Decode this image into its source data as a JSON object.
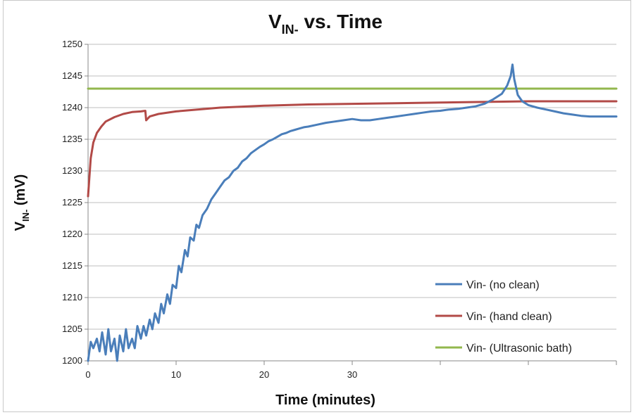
{
  "chart_data": {
    "type": "line",
    "title": {
      "prefix": "V",
      "subscript": "IN-",
      "suffix": " vs. Time"
    },
    "xlabel": "Time (minutes)",
    "ylabel": {
      "prefix": "V",
      "subscript": "IN-",
      "suffix": " (mV)"
    },
    "xlim": [
      0,
      60
    ],
    "ylim": [
      1200,
      1250
    ],
    "x_ticks": [
      0,
      10,
      20,
      30
    ],
    "y_ticks": [
      1200,
      1205,
      1210,
      1215,
      1220,
      1225,
      1230,
      1235,
      1240,
      1245,
      1250
    ],
    "grid": true,
    "legend_position": "right",
    "series": [
      {
        "name": "Vin- (no clean)",
        "color": "#4a7eba",
        "points": [
          [
            0.0,
            1200.0
          ],
          [
            0.3,
            1203.0
          ],
          [
            0.6,
            1202.0
          ],
          [
            1.0,
            1203.5
          ],
          [
            1.3,
            1201.5
          ],
          [
            1.6,
            1204.5
          ],
          [
            2.0,
            1201.0
          ],
          [
            2.3,
            1205.0
          ],
          [
            2.6,
            1201.5
          ],
          [
            3.0,
            1203.5
          ],
          [
            3.3,
            1200.0
          ],
          [
            3.6,
            1204.0
          ],
          [
            4.0,
            1201.5
          ],
          [
            4.3,
            1205.0
          ],
          [
            4.6,
            1202.0
          ],
          [
            5.0,
            1203.5
          ],
          [
            5.3,
            1202.0
          ],
          [
            5.6,
            1205.5
          ],
          [
            6.0,
            1203.5
          ],
          [
            6.3,
            1205.5
          ],
          [
            6.6,
            1204.0
          ],
          [
            7.0,
            1206.5
          ],
          [
            7.3,
            1205.0
          ],
          [
            7.6,
            1207.5
          ],
          [
            8.0,
            1206.0
          ],
          [
            8.3,
            1209.0
          ],
          [
            8.6,
            1207.5
          ],
          [
            9.0,
            1210.5
          ],
          [
            9.3,
            1209.0
          ],
          [
            9.6,
            1212.0
          ],
          [
            10.0,
            1211.5
          ],
          [
            10.3,
            1215.0
          ],
          [
            10.6,
            1214.0
          ],
          [
            11.0,
            1217.5
          ],
          [
            11.3,
            1216.5
          ],
          [
            11.6,
            1219.5
          ],
          [
            12.0,
            1219.0
          ],
          [
            12.3,
            1221.5
          ],
          [
            12.6,
            1221.0
          ],
          [
            13.0,
            1223.0
          ],
          [
            13.5,
            1224.0
          ],
          [
            14.0,
            1225.5
          ],
          [
            14.5,
            1226.5
          ],
          [
            15.0,
            1227.5
          ],
          [
            15.5,
            1228.5
          ],
          [
            16.0,
            1229.0
          ],
          [
            16.5,
            1230.0
          ],
          [
            17.0,
            1230.5
          ],
          [
            17.5,
            1231.5
          ],
          [
            18.0,
            1232.0
          ],
          [
            18.5,
            1232.8
          ],
          [
            19.0,
            1233.3
          ],
          [
            19.5,
            1233.8
          ],
          [
            20.0,
            1234.2
          ],
          [
            20.5,
            1234.7
          ],
          [
            21.0,
            1235.0
          ],
          [
            21.5,
            1235.4
          ],
          [
            22.0,
            1235.8
          ],
          [
            22.5,
            1236.0
          ],
          [
            23.0,
            1236.3
          ],
          [
            23.5,
            1236.5
          ],
          [
            24.0,
            1236.7
          ],
          [
            24.5,
            1236.9
          ],
          [
            25.0,
            1237.0
          ],
          [
            26.0,
            1237.3
          ],
          [
            27.0,
            1237.6
          ],
          [
            28.0,
            1237.8
          ],
          [
            29.0,
            1238.0
          ],
          [
            30.0,
            1238.2
          ],
          [
            31.0,
            1238.0
          ],
          [
            32.0,
            1238.0
          ],
          [
            33.0,
            1238.2
          ],
          [
            34.0,
            1238.4
          ],
          [
            35.0,
            1238.6
          ],
          [
            36.0,
            1238.8
          ],
          [
            37.0,
            1239.0
          ],
          [
            38.0,
            1239.2
          ],
          [
            39.0,
            1239.4
          ],
          [
            40.0,
            1239.5
          ],
          [
            41.0,
            1239.7
          ],
          [
            42.0,
            1239.8
          ],
          [
            43.0,
            1240.0
          ],
          [
            44.0,
            1240.2
          ],
          [
            45.0,
            1240.6
          ],
          [
            46.0,
            1241.3
          ],
          [
            47.0,
            1242.2
          ],
          [
            47.6,
            1243.5
          ],
          [
            48.0,
            1245.0
          ],
          [
            48.2,
            1246.8
          ],
          [
            48.4,
            1244.5
          ],
          [
            48.8,
            1242.0
          ],
          [
            49.3,
            1241.0
          ],
          [
            50.0,
            1240.4
          ],
          [
            51.0,
            1240.0
          ],
          [
            52.0,
            1239.7
          ],
          [
            53.0,
            1239.4
          ],
          [
            54.0,
            1239.1
          ],
          [
            55.0,
            1238.9
          ],
          [
            56.0,
            1238.7
          ],
          [
            57.0,
            1238.6
          ],
          [
            58.0,
            1238.6
          ],
          [
            59.0,
            1238.6
          ],
          [
            60.0,
            1238.6
          ]
        ]
      },
      {
        "name": "Vin- (hand clean)",
        "color": "#b24a47",
        "points": [
          [
            0.0,
            1226.0
          ],
          [
            0.3,
            1232.0
          ],
          [
            0.6,
            1234.5
          ],
          [
            1.0,
            1236.0
          ],
          [
            1.5,
            1237.0
          ],
          [
            2.0,
            1237.8
          ],
          [
            3.0,
            1238.5
          ],
          [
            4.0,
            1239.0
          ],
          [
            5.0,
            1239.3
          ],
          [
            6.0,
            1239.4
          ],
          [
            6.5,
            1239.5
          ],
          [
            6.6,
            1238.0
          ],
          [
            7.0,
            1238.6
          ],
          [
            8.0,
            1239.0
          ],
          [
            10.0,
            1239.4
          ],
          [
            15.0,
            1240.0
          ],
          [
            20.0,
            1240.3
          ],
          [
            25.0,
            1240.5
          ],
          [
            30.0,
            1240.6
          ],
          [
            35.0,
            1240.7
          ],
          [
            40.0,
            1240.8
          ],
          [
            45.0,
            1240.9
          ],
          [
            50.0,
            1241.0
          ],
          [
            55.0,
            1241.0
          ],
          [
            60.0,
            1241.0
          ]
        ]
      },
      {
        "name": "Vin- (Ultrasonic bath)",
        "color": "#92b74d",
        "points": [
          [
            0.0,
            1243.0
          ],
          [
            60.0,
            1243.0
          ]
        ]
      }
    ]
  }
}
